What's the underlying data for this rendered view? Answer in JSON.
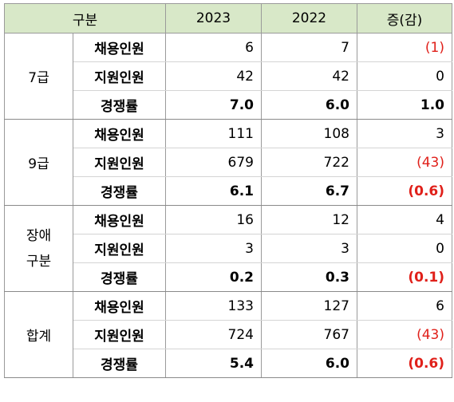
{
  "header": {
    "category": "구분",
    "year1": "2023",
    "year2": "2022",
    "change": "증(감)"
  },
  "groups": [
    {
      "label": "7급",
      "rows": [
        {
          "metric": "채용인원",
          "y2023": "6",
          "y2022": "7",
          "change": "(1)",
          "bold": false,
          "neg": true
        },
        {
          "metric": "지원인원",
          "y2023": "42",
          "y2022": "42",
          "change": "0",
          "bold": false,
          "neg": false
        },
        {
          "metric": "경쟁률",
          "y2023": "7.0",
          "y2022": "6.0",
          "change": "1.0",
          "bold": true,
          "neg": false
        }
      ]
    },
    {
      "label": "9급",
      "rows": [
        {
          "metric": "채용인원",
          "y2023": "111",
          "y2022": "108",
          "change": "3",
          "bold": false,
          "neg": false
        },
        {
          "metric": "지원인원",
          "y2023": "679",
          "y2022": "722",
          "change": "(43)",
          "bold": false,
          "neg": true
        },
        {
          "metric": "경쟁률",
          "y2023": "6.1",
          "y2022": "6.7",
          "change": "(0.6)",
          "bold": true,
          "neg": true
        }
      ]
    },
    {
      "label_line1": "장애",
      "label_line2": "구분",
      "rows": [
        {
          "metric": "채용인원",
          "y2023": "16",
          "y2022": "12",
          "change": "4",
          "bold": false,
          "neg": false
        },
        {
          "metric": "지원인원",
          "y2023": "3",
          "y2022": "3",
          "change": "0",
          "bold": false,
          "neg": false
        },
        {
          "metric": "경쟁률",
          "y2023": "0.2",
          "y2022": "0.3",
          "change": "(0.1)",
          "bold": true,
          "neg": true
        }
      ]
    },
    {
      "label": "합계",
      "rows": [
        {
          "metric": "채용인원",
          "y2023": "133",
          "y2022": "127",
          "change": "6",
          "bold": false,
          "neg": false
        },
        {
          "metric": "지원인원",
          "y2023": "724",
          "y2022": "767",
          "change": "(43)",
          "bold": false,
          "neg": true
        },
        {
          "metric": "경쟁률",
          "y2023": "5.4",
          "y2022": "6.0",
          "change": "(0.6)",
          "bold": true,
          "neg": true
        }
      ]
    }
  ]
}
